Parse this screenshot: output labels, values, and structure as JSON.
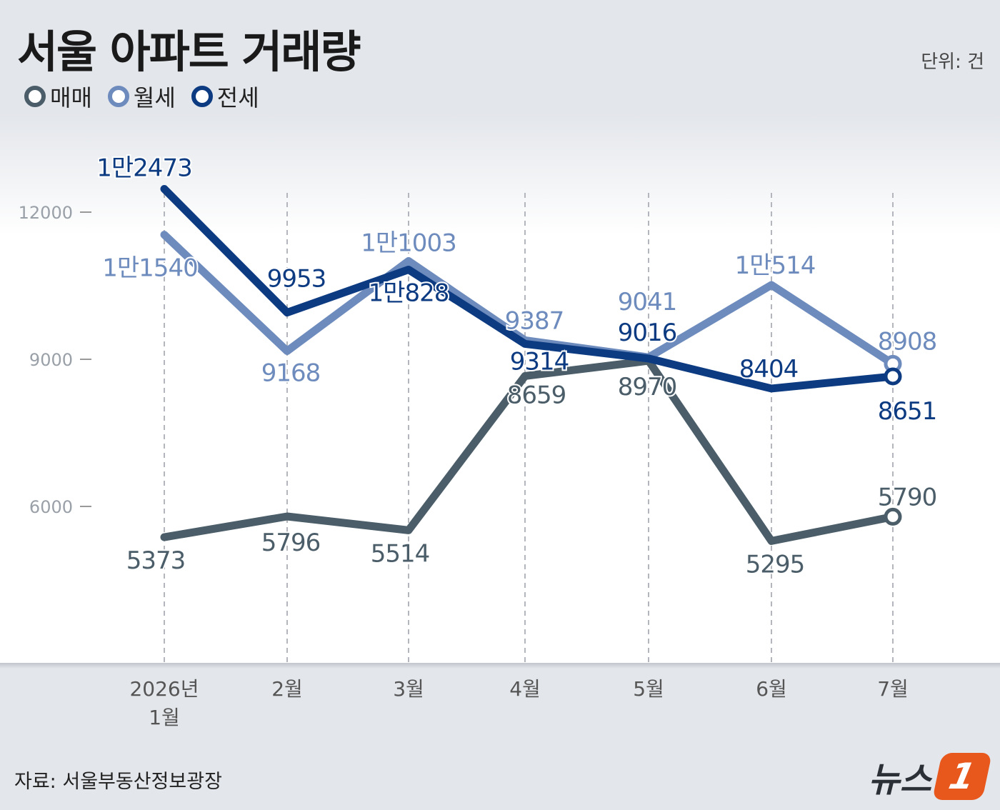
{
  "title": "서울 아파트 거래량",
  "unit_label": "단위: 건",
  "source": "자료: 서울부동산정보광장",
  "logo": {
    "text": "뉴스",
    "badge": "1"
  },
  "chart_data": {
    "type": "line",
    "title": "서울 아파트 거래량",
    "categories": [
      "2026년 1월",
      "2월",
      "3월",
      "4월",
      "5월",
      "6월",
      "7월"
    ],
    "series": [
      {
        "name": "매매",
        "color": "#4a5d68",
        "values": [
          5373,
          5796,
          5514,
          8659,
          8970,
          5295,
          5790
        ],
        "labels": [
          "5373",
          "5796",
          "5514",
          "8659",
          "8970",
          "5295",
          "5790"
        ]
      },
      {
        "name": "월세",
        "color": "#6d8bbd",
        "values": [
          11540,
          9168,
          11003,
          9387,
          9041,
          10514,
          8908
        ],
        "labels": [
          "1만1540",
          "9168",
          "1만1003",
          "9387",
          "9041",
          "1만514",
          "8908"
        ]
      },
      {
        "name": "전세",
        "color": "#0d3b82",
        "values": [
          12473,
          9953,
          10828,
          9314,
          9016,
          8404,
          8651
        ],
        "labels": [
          "1만2473",
          "9953",
          "1만828",
          "9314",
          "9016",
          "8404",
          "8651"
        ]
      }
    ],
    "y_ticks": [
      6000,
      9000,
      12000
    ],
    "ylim": [
      3000,
      13500
    ],
    "grid": false,
    "legend_position": "top-left"
  }
}
